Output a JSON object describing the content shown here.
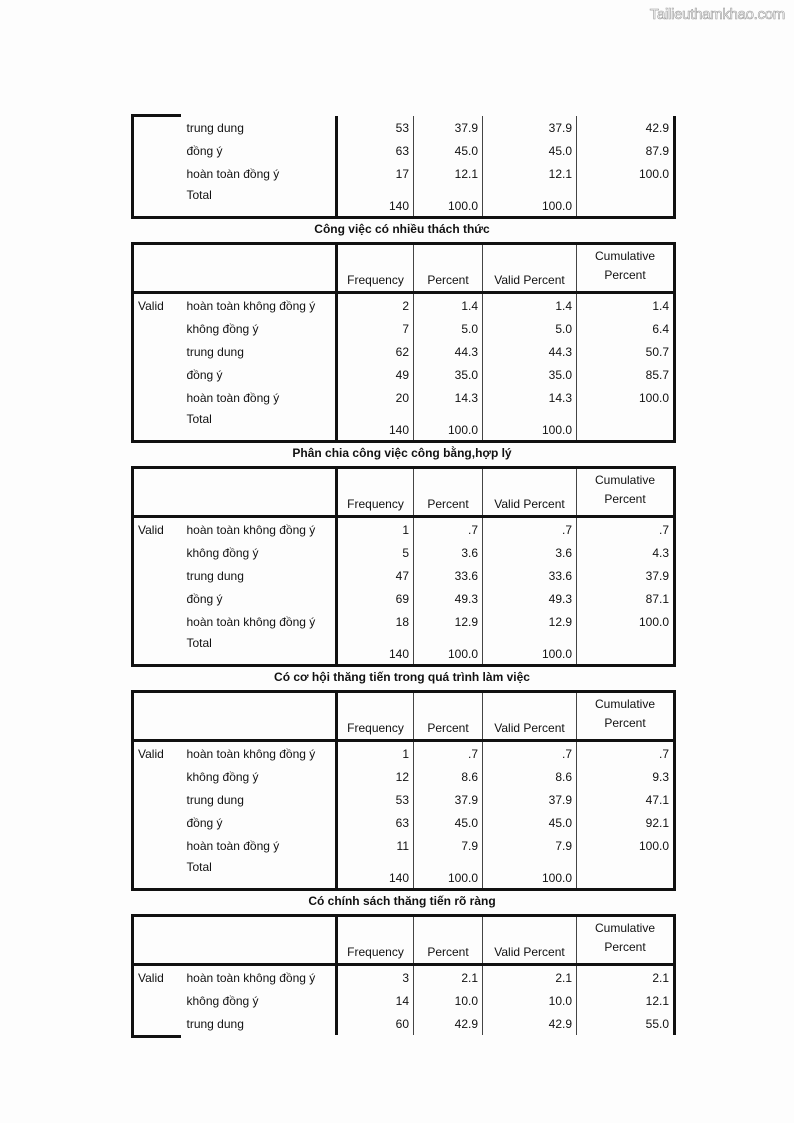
{
  "watermark": "Tailieuthamkhao.com",
  "headers": {
    "frequency": "Frequency",
    "percent": "Percent",
    "valid_percent": "Valid Percent",
    "cumulative_1": "Cumulative",
    "cumulative_2": "Percent",
    "valid": "Valid"
  },
  "tables": [
    {
      "title": "",
      "partial_top": true,
      "rows": [
        [
          "trung dung",
          "53",
          "37.9",
          "37.9",
          "42.9"
        ],
        [
          "đồng ý",
          "63",
          "45.0",
          "45.0",
          "87.9"
        ],
        [
          "hoàn toàn đồng ý",
          "17",
          "12.1",
          "12.1",
          "100.0"
        ]
      ],
      "total": [
        "Total",
        "140",
        "100.0",
        "100.0",
        ""
      ]
    },
    {
      "title": "Công việc có nhiều thách thức",
      "rows": [
        [
          "hoàn toàn không đồng ý",
          "2",
          "1.4",
          "1.4",
          "1.4"
        ],
        [
          "không đồng ý",
          "7",
          "5.0",
          "5.0",
          "6.4"
        ],
        [
          "trung dung",
          "62",
          "44.3",
          "44.3",
          "50.7"
        ],
        [
          "đồng ý",
          "49",
          "35.0",
          "35.0",
          "85.7"
        ],
        [
          "hoàn toàn đồng ý",
          "20",
          "14.3",
          "14.3",
          "100.0"
        ]
      ],
      "total": [
        "Total",
        "140",
        "100.0",
        "100.0",
        ""
      ]
    },
    {
      "title": "Phân chia công việc công bằng,hợp lý",
      "rows": [
        [
          "hoàn toàn không đồng ý",
          "1",
          ".7",
          ".7",
          ".7"
        ],
        [
          "không đồng ý",
          "5",
          "3.6",
          "3.6",
          "4.3"
        ],
        [
          "trung dung",
          "47",
          "33.6",
          "33.6",
          "37.9"
        ],
        [
          "đồng ý",
          "69",
          "49.3",
          "49.3",
          "87.1"
        ],
        [
          "hoàn toàn không đồng ý",
          "18",
          "12.9",
          "12.9",
          "100.0"
        ]
      ],
      "total": [
        "Total",
        "140",
        "100.0",
        "100.0",
        ""
      ]
    },
    {
      "title": "Có cơ hội thăng tiến trong quá trình làm việc",
      "rows": [
        [
          "hoàn toàn không đồng ý",
          "1",
          ".7",
          ".7",
          ".7"
        ],
        [
          "không đồng ý",
          "12",
          "8.6",
          "8.6",
          "9.3"
        ],
        [
          "trung dung",
          "53",
          "37.9",
          "37.9",
          "47.1"
        ],
        [
          "đồng ý",
          "63",
          "45.0",
          "45.0",
          "92.1"
        ],
        [
          "hoàn toàn đồng ý",
          "11",
          "7.9",
          "7.9",
          "100.0"
        ]
      ],
      "total": [
        "Total",
        "140",
        "100.0",
        "100.0",
        ""
      ]
    },
    {
      "title": "Có chính sách thăng tiến rõ ràng",
      "partial_bottom": true,
      "rows": [
        [
          "hoàn toàn không đồng ý",
          "3",
          "2.1",
          "2.1",
          "2.1"
        ],
        [
          "không đồng ý",
          "14",
          "10.0",
          "10.0",
          "12.1"
        ],
        [
          "trung dung",
          "60",
          "42.9",
          "42.9",
          "55.0"
        ]
      ]
    }
  ]
}
